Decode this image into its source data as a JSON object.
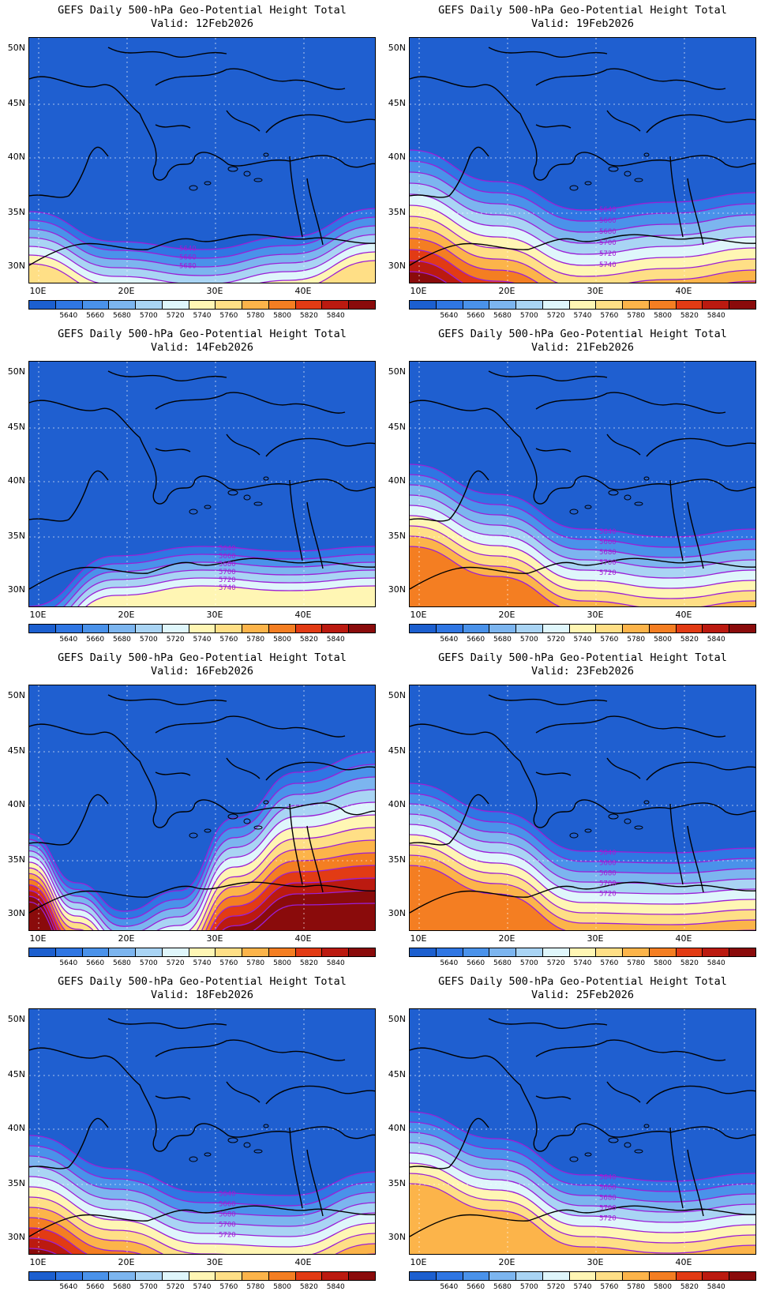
{
  "title": "GEFS Daily 500-hPa Geo-Potential Height Total",
  "y_ticks": [
    "50N",
    "45N",
    "40N",
    "35N",
    "30N"
  ],
  "x_ticks": [
    "10E",
    "20E",
    "30E",
    "40E"
  ],
  "colorbar": {
    "colors": [
      "#1c5fcf",
      "#2f76e3",
      "#4a92ea",
      "#7cb5ef",
      "#a9d4f4",
      "#dff6fb",
      "#fff6b4",
      "#ffdf86",
      "#fcb44a",
      "#f47e22",
      "#e23b14",
      "#bb1a10",
      "#8a0b0b"
    ],
    "labels": [
      "5640",
      "5660",
      "5680",
      "5700",
      "5720",
      "5740",
      "5760",
      "5780",
      "5800",
      "5820",
      "5840"
    ]
  },
  "panels": [
    {
      "valid": "Valid: 12Feb2026",
      "contour_labels": [
        "5640",
        "5660",
        "5680"
      ]
    },
    {
      "valid": "Valid: 19Feb2026",
      "contour_labels": [
        "5640",
        "5660",
        "5680",
        "5700",
        "5720",
        "5740"
      ]
    },
    {
      "valid": "Valid: 14Feb2026",
      "contour_labels": [
        "5640",
        "5660",
        "5680",
        "5700",
        "5720",
        "5740"
      ]
    },
    {
      "valid": "Valid: 21Feb2026",
      "contour_labels": [
        "5640",
        "5660",
        "5680",
        "5700",
        "5720"
      ]
    },
    {
      "valid": "Valid: 16Feb2026",
      "contour_labels": []
    },
    {
      "valid": "Valid: 23Feb2026",
      "contour_labels": [
        "5640",
        "5660",
        "5680",
        "5700",
        "5720"
      ]
    },
    {
      "valid": "Valid: 18Feb2026",
      "contour_labels": [
        "5640",
        "5660",
        "5680",
        "5700",
        "5720"
      ]
    },
    {
      "valid": "Valid: 25Feb2026",
      "contour_labels": [
        "5640",
        "5660",
        "5680",
        "5700",
        "5720"
      ]
    }
  ]
}
